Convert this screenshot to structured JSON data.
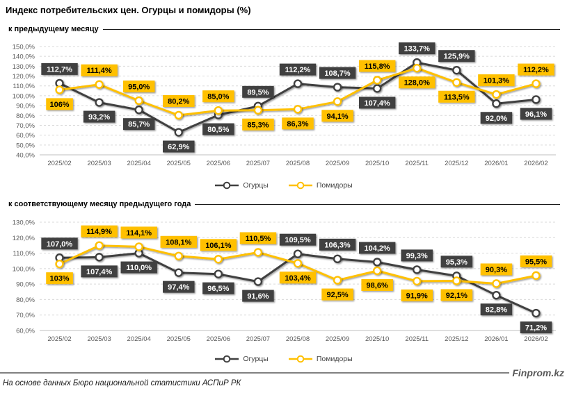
{
  "title": "Индекс потребительских цен. Огурцы и помидоры (%)",
  "source": "На основе данных Бюро национальной статистики АСПиР РК",
  "brand": "Finprom.kz",
  "colors": {
    "cucumbers": "#404040",
    "tomatoes": "#FFC000",
    "grid": "#D9D9D9",
    "axis_line": "#BFBFBF",
    "axis_text": "#595959",
    "dark_label_bg": "#3F3F3F",
    "dark_label_fg": "#FFFFFF",
    "yellow_label_bg": "#FFC000",
    "yellow_label_fg": "#000000"
  },
  "chart_data": [
    {
      "type": "line",
      "title": "к предыдущему месяцу",
      "categories": [
        "2025/02",
        "2025/03",
        "2025/04",
        "2025/05",
        "2025/06",
        "2025/07",
        "2025/08",
        "2025/09",
        "2025/10",
        "2025/11",
        "2025/12",
        "2026/01",
        "2026/02"
      ],
      "series": [
        {
          "id": "cucumbers",
          "name": "Огурцы",
          "color": "#404040",
          "label_bg": "#3F3F3F",
          "label_fg": "#FFFFFF",
          "values": [
            112.7,
            93.2,
            85.7,
            62.9,
            80.5,
            89.5,
            112.2,
            108.7,
            107.4,
            133.7,
            125.9,
            92.0,
            96.1
          ],
          "labels": [
            "112,7%",
            "93,2%",
            "85,7%",
            "62,9%",
            "80,5%",
            "89,5%",
            "112,2%",
            "108,7%",
            "107,4%",
            "133,7%",
            "125,9%",
            "92,0%",
            "96,1%"
          ]
        },
        {
          "id": "tomatoes",
          "name": "Помидоры",
          "color": "#FFC000",
          "label_bg": "#FFC000",
          "label_fg": "#000000",
          "values": [
            106,
            111.4,
            95.0,
            80.2,
            85.0,
            85.3,
            86.3,
            94.1,
            115.8,
            128.0,
            113.5,
            101.3,
            112.2
          ],
          "labels": [
            "106%",
            "111,4%",
            "95,0%",
            "80,2%",
            "85,0%",
            "85,3%",
            "86,3%",
            "94,1%",
            "115,8%",
            "128,0%",
            "113,5%",
            "101,3%",
            "112,2%"
          ]
        }
      ],
      "ylim": [
        40,
        150
      ],
      "ytick_step": 10,
      "grid": true,
      "legend_position": "bottom"
    },
    {
      "type": "line",
      "title": "к соответствующему месяцу предыдущего года",
      "categories": [
        "2025/02",
        "2025/03",
        "2025/04",
        "2025/05",
        "2025/06",
        "2025/07",
        "2025/08",
        "2025/09",
        "2025/10",
        "2025/11",
        "2025/12",
        "2026/01",
        "2026/02"
      ],
      "series": [
        {
          "id": "cucumbers",
          "name": "Огурцы",
          "color": "#404040",
          "label_bg": "#3F3F3F",
          "label_fg": "#FFFFFF",
          "values": [
            107.0,
            107.4,
            110.0,
            97.4,
            96.5,
            91.6,
            109.5,
            106.3,
            104.2,
            99.3,
            95.3,
            82.8,
            71.2
          ],
          "labels": [
            "107,0%",
            "107,4%",
            "110,0%",
            "97,4%",
            "96,5%",
            "91,6%",
            "109,5%",
            "106,3%",
            "104,2%",
            "99,3%",
            "95,3%",
            "82,8%",
            "71,2%"
          ]
        },
        {
          "id": "tomatoes",
          "name": "Помидоры",
          "color": "#FFC000",
          "label_bg": "#FFC000",
          "label_fg": "#000000",
          "values": [
            103,
            114.9,
            114.1,
            108.1,
            106.1,
            110.5,
            103.4,
            92.5,
            98.6,
            91.9,
            92.1,
            90.3,
            95.5
          ],
          "labels": [
            "103%",
            "114,9%",
            "114,1%",
            "108,1%",
            "106,1%",
            "110,5%",
            "103,4%",
            "92,5%",
            "98,6%",
            "91,9%",
            "92,1%",
            "90,3%",
            "95,5%"
          ]
        }
      ],
      "ylim": [
        60,
        130
      ],
      "ytick_step": 10,
      "grid": true,
      "legend_position": "bottom"
    }
  ]
}
